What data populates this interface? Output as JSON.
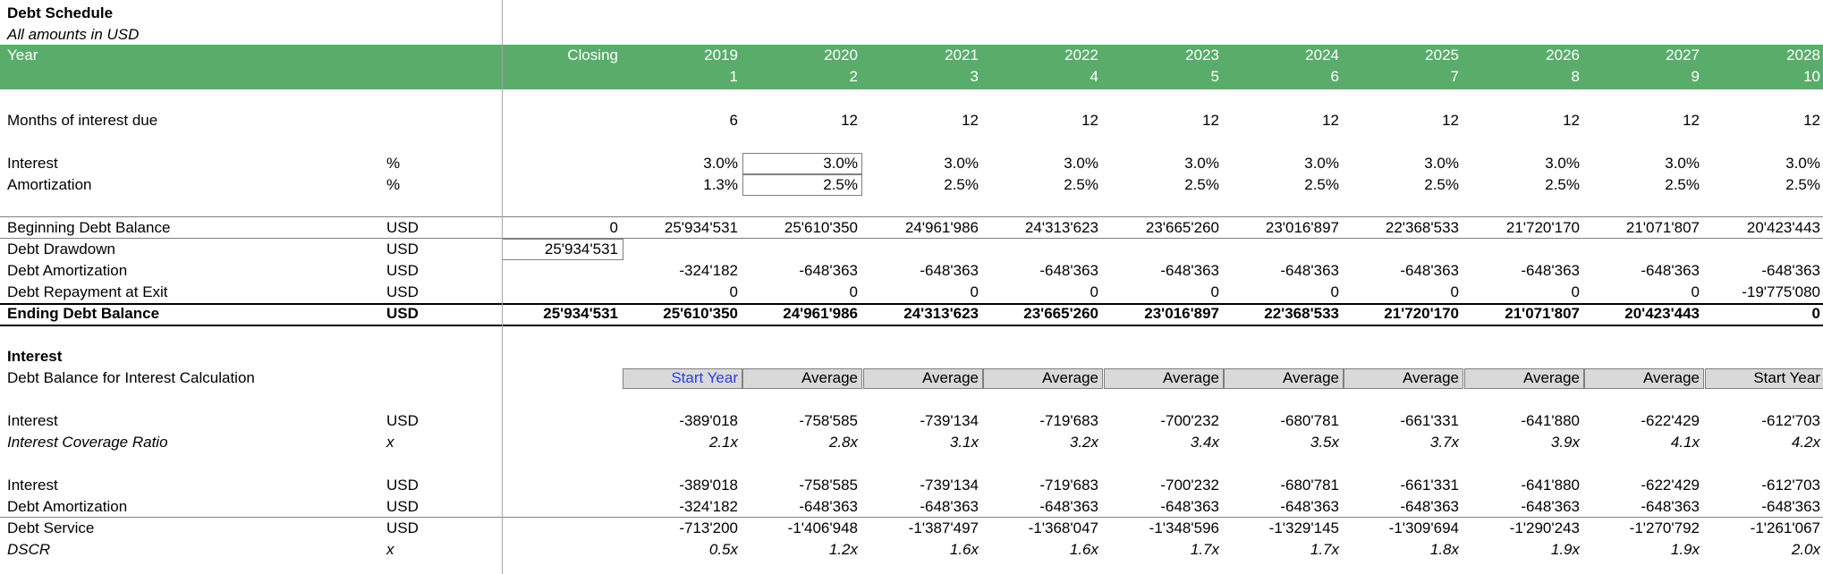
{
  "title": "Debt Schedule",
  "subtitle": "All amounts in USD",
  "header": {
    "year_label": "Year",
    "closing_label": "Closing",
    "years": [
      "2019",
      "2020",
      "2021",
      "2022",
      "2023",
      "2024",
      "2025",
      "2026",
      "2027",
      "2028"
    ],
    "periods": [
      "1",
      "2",
      "3",
      "4",
      "5",
      "6",
      "7",
      "8",
      "9",
      "10"
    ]
  },
  "colors": {
    "header_bg": "#5aac6b",
    "header_text": "#ffffff",
    "method_bg": "#d9d9d9",
    "start_year_text": "#2a3fe0"
  },
  "rows": {
    "months": {
      "label": "Months of interest due",
      "unit": "",
      "closing": "",
      "values": [
        "6",
        "12",
        "12",
        "12",
        "12",
        "12",
        "12",
        "12",
        "12",
        "12"
      ]
    },
    "interest_rate": {
      "label": "Interest",
      "unit": "%",
      "closing": "",
      "values": [
        "3.0%",
        "3.0%",
        "3.0%",
        "3.0%",
        "3.0%",
        "3.0%",
        "3.0%",
        "3.0%",
        "3.0%",
        "3.0%"
      ]
    },
    "amort_rate": {
      "label": "Amortization",
      "unit": "%",
      "closing": "",
      "values": [
        "1.3%",
        "2.5%",
        "2.5%",
        "2.5%",
        "2.5%",
        "2.5%",
        "2.5%",
        "2.5%",
        "2.5%",
        "2.5%"
      ]
    },
    "beginning": {
      "label": "Beginning Debt Balance",
      "unit": "USD",
      "closing": "0",
      "values": [
        "25'934'531",
        "25'610'350",
        "24'961'986",
        "24'313'623",
        "23'665'260",
        "23'016'897",
        "22'368'533",
        "21'720'170",
        "21'071'807",
        "20'423'443"
      ]
    },
    "drawdown": {
      "label": "Debt Drawdown",
      "unit": "USD",
      "closing": "25'934'531",
      "values": [
        "",
        "",
        "",
        "",
        "",
        "",
        "",
        "",
        "",
        ""
      ]
    },
    "amortization": {
      "label": "Debt Amortization",
      "unit": "USD",
      "closing": "",
      "values": [
        "-324'182",
        "-648'363",
        "-648'363",
        "-648'363",
        "-648'363",
        "-648'363",
        "-648'363",
        "-648'363",
        "-648'363",
        "-648'363"
      ]
    },
    "repayment": {
      "label": "Debt Repayment at Exit",
      "unit": "USD",
      "closing": "",
      "values": [
        "0",
        "0",
        "0",
        "0",
        "0",
        "0",
        "0",
        "0",
        "0",
        "-19'775'080"
      ]
    },
    "ending": {
      "label": "Ending Debt Balance",
      "unit": "USD",
      "closing": "25'934'531",
      "values": [
        "25'610'350",
        "24'961'986",
        "24'313'623",
        "23'665'260",
        "23'016'897",
        "22'368'533",
        "21'720'170",
        "21'071'807",
        "20'423'443",
        "0"
      ]
    },
    "interest_section": {
      "label": "Interest",
      "unit": "",
      "closing": "",
      "values": [
        "",
        "",
        "",
        "",
        "",
        "",
        "",
        "",
        "",
        ""
      ]
    },
    "balance_calc": {
      "label": "Debt Balance for Interest Calculation",
      "unit": "",
      "closing": "",
      "values": [
        "Start Year",
        "Average",
        "Average",
        "Average",
        "Average",
        "Average",
        "Average",
        "Average",
        "Average",
        "Start Year"
      ]
    },
    "interest_usd": {
      "label": "Interest",
      "unit": "USD",
      "closing": "",
      "values": [
        "-389'018",
        "-758'585",
        "-739'134",
        "-719'683",
        "-700'232",
        "-680'781",
        "-661'331",
        "-641'880",
        "-622'429",
        "-612'703"
      ]
    },
    "icr": {
      "label": "Interest Coverage Ratio",
      "unit": "x",
      "closing": "",
      "values": [
        "2.1x",
        "2.8x",
        "3.1x",
        "3.2x",
        "3.4x",
        "3.5x",
        "3.7x",
        "3.9x",
        "4.1x",
        "4.2x"
      ]
    },
    "interest_usd2": {
      "label": "Interest",
      "unit": "USD",
      "closing": "",
      "values": [
        "-389'018",
        "-758'585",
        "-739'134",
        "-719'683",
        "-700'232",
        "-680'781",
        "-661'331",
        "-641'880",
        "-622'429",
        "-612'703"
      ]
    },
    "amortization2": {
      "label": "Debt Amortization",
      "unit": "USD",
      "closing": "",
      "values": [
        "-324'182",
        "-648'363",
        "-648'363",
        "-648'363",
        "-648'363",
        "-648'363",
        "-648'363",
        "-648'363",
        "-648'363",
        "-648'363"
      ]
    },
    "service": {
      "label": "Debt Service",
      "unit": "USD",
      "closing": "",
      "values": [
        "-713'200",
        "-1'406'948",
        "-1'387'497",
        "-1'368'047",
        "-1'348'596",
        "-1'329'145",
        "-1'309'694",
        "-1'290'243",
        "-1'270'792",
        "-1'261'067"
      ]
    },
    "dscr": {
      "label": "DSCR",
      "unit": "x",
      "closing": "",
      "values": [
        "0.5x",
        "1.2x",
        "1.6x",
        "1.6x",
        "1.7x",
        "1.7x",
        "1.8x",
        "1.9x",
        "1.9x",
        "2.0x"
      ]
    }
  }
}
